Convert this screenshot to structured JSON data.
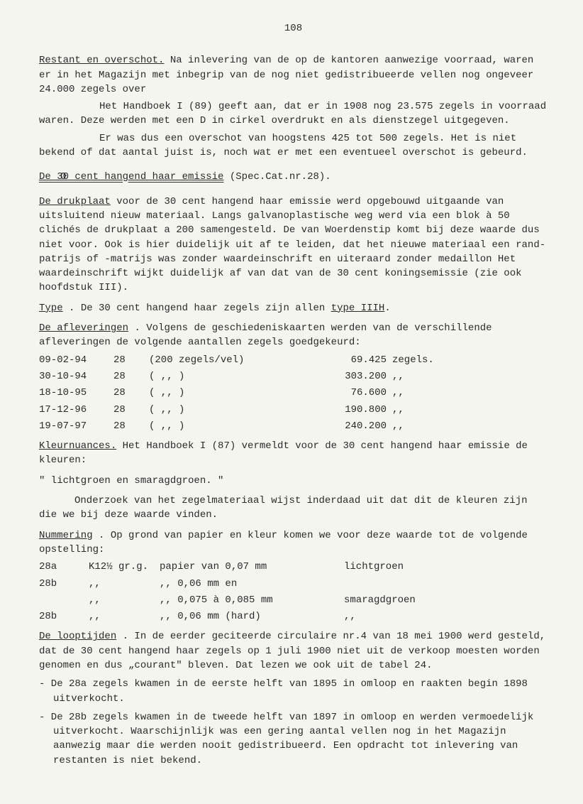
{
  "page_number": "108",
  "section1": {
    "heading": "Restant en overschot.",
    "p1": "Na inlevering van de op de kantoren aanwezige voorraad, waren er in het Magazijn met inbegrip van de nog niet gedistribueerde vellen nog ongeveer 24.000 zegels over",
    "p2": "Het Handboek I (89) geeft aan, dat er in 1908 nog 23.575 zegels in voorraad waren. Deze werden met een D in cirkel overdrukt en als dienstzegel uitgegeven.",
    "p3": "Er was dus een overschot van hoogstens 425 tot 500 zegels. Het is niet bekend of dat aantal juist is, noch wat er met een eventueel overschot is gebeurd."
  },
  "section2": {
    "title_part1": "De 30 cent hangend haar emissie",
    "title_part2": " (Spec.Cat.nr.28).",
    "drukplaat_label": "De drukplaat",
    "drukplaat_text": " voor de 30 cent hangend haar emissie werd opgebouwd uitgaande van uitsluitend nieuw materiaal. Langs galvanoplastische weg werd  via een blok à 50 clichés de drukplaat a 200 samengesteld. De van Woerdenstip komt bij deze waarde dus niet voor. Ook is hier duidelijk uit af te leiden, dat het nieuwe materiaal een rand-patrijs of -matrijs was zonder waardeinschrift en uiteraard zonder medaillon Het waardeinschrift wijkt duidelijk af van dat van de 30 cent koningsemissie (zie ook hoofdstuk III).",
    "type_label": "Type",
    "type_text": ". De 30 cent hangend haar zegels zijn allen ",
    "type_value": "type IIIH",
    "aflevering_label": "De afleveringen",
    "aflevering_text": ". Volgens de geschiedeniskaarten werden van de verschillende afleveringen de volgende aantallen zegels goedgekeurd:",
    "deliveries": [
      {
        "date": "09-02-94",
        "n": "28",
        "note": "(200 zegels/vel)",
        "count": "69.425",
        "unit": "zegels."
      },
      {
        "date": "30-10-94",
        "n": "28",
        "note": "(      ,,       )",
        "count": "303.200",
        "unit": ",,"
      },
      {
        "date": "18-10-95",
        "n": "28",
        "note": "(      ,,       )",
        "count": "76.600",
        "unit": ",,"
      },
      {
        "date": "17-12-96",
        "n": "28",
        "note": "(      ,,       )",
        "count": "190.800",
        "unit": ",,"
      },
      {
        "date": "19-07-97",
        "n": "28",
        "note": "(      ,,       )",
        "count": "240.200",
        "unit": ",,"
      }
    ],
    "kleur_label": "Kleurnuances.",
    "kleur_text": " Het Handboek I (87) vermeldt voor de 30 cent hangend haar emissie de kleuren:",
    "kleur_quote": "\"   lichtgroen en smaragdgroen. \"",
    "kleur_p2": "Onderzoek van het zegelmateriaal wijst inderdaad uit dat dit de kleuren zijn die we bij deze waarde vinden.",
    "num_label": "Nummering",
    "num_text": ". Op grond van papier en kleur komen we voor deze waarde tot de volgende opstelling:",
    "numbering": [
      {
        "id": "28a",
        "perf": "K12½ gr.g.",
        "paper": "papier van 0,07 mm",
        "color": "lichtgroen"
      },
      {
        "id": "28b",
        "perf": ",,",
        "paper": ",,    0,06 mm en",
        "color": ""
      },
      {
        "id": "",
        "perf": ",,",
        "paper": ",,    0,075 à 0,085 mm",
        "color": "smaragdgroen"
      },
      {
        "id": "28b",
        "perf": ",,",
        "paper": ",,    0,06 mm (hard)",
        "color": "   ,,"
      }
    ],
    "loop_label": "De looptijden",
    "loop_text": ". In de eerder geciteerde circulaire nr.4 van 18 mei 1900 werd gesteld, dat de 30 cent hangend haar zegels op 1 juli 1900 niet uit de verkoop moesten worden genomen en dus „courant\" bleven. Dat lezen we ook uit de tabel 24.",
    "bullets": [
      "- De 28a zegels kwamen in de eerste helft van 1895 in omloop en raakten begin 1898 uitverkocht.",
      "- De 28b zegels kwamen in de tweede helft van 1897 in omloop en werden vermoedelijk uitverkocht. Waarschijnlijk was een gering aantal vellen nog in het Magazijn aanwezig maar die werden nooit gedistribueerd. Een opdracht tot inlevering van restanten is niet bekend."
    ]
  }
}
